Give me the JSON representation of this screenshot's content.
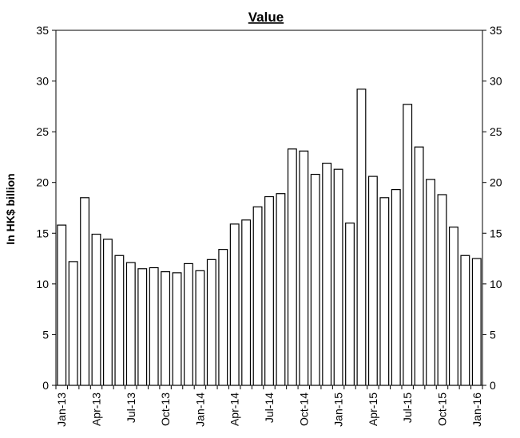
{
  "chart_data": {
    "type": "bar",
    "title": "Value",
    "ylabel": "In HK$ billion",
    "xlabel": "",
    "ylim": [
      0,
      35
    ],
    "yticks": [
      0,
      5,
      10,
      15,
      20,
      25,
      30,
      35
    ],
    "secondary_yaxis": true,
    "grid": false,
    "legend": "none",
    "categories": [
      "Jan-13",
      "Feb-13",
      "Mar-13",
      "Apr-13",
      "May-13",
      "Jun-13",
      "Jul-13",
      "Aug-13",
      "Sep-13",
      "Oct-13",
      "Nov-13",
      "Dec-13",
      "Jan-14",
      "Feb-14",
      "Mar-14",
      "Apr-14",
      "May-14",
      "Jun-14",
      "Jul-14",
      "Aug-14",
      "Sep-14",
      "Oct-14",
      "Nov-14",
      "Dec-14",
      "Jan-15",
      "Feb-15",
      "Mar-15",
      "Apr-15",
      "May-15",
      "Jun-15",
      "Jul-15",
      "Aug-15",
      "Sep-15",
      "Oct-15",
      "Nov-15",
      "Dec-15",
      "Jan-16"
    ],
    "tick_labels": [
      "Jan-13",
      "Apr-13",
      "Jul-13",
      "Oct-13",
      "Jan-14",
      "Apr-14",
      "Jul-14",
      "Oct-14",
      "Jan-15",
      "Apr-15",
      "Jul-15",
      "Oct-15",
      "Jan-16"
    ],
    "values": [
      15.8,
      12.2,
      18.5,
      14.9,
      14.4,
      12.8,
      12.1,
      11.5,
      11.6,
      11.2,
      11.1,
      12.0,
      11.3,
      12.4,
      13.4,
      15.9,
      16.3,
      17.6,
      18.6,
      18.9,
      23.3,
      23.1,
      20.8,
      21.9,
      21.3,
      16.0,
      29.2,
      20.6,
      18.5,
      19.3,
      27.7,
      23.5,
      20.3,
      18.8,
      15.6,
      12.8,
      12.5
    ],
    "bar_fill": "#ffffff",
    "bar_stroke": "#000000"
  }
}
